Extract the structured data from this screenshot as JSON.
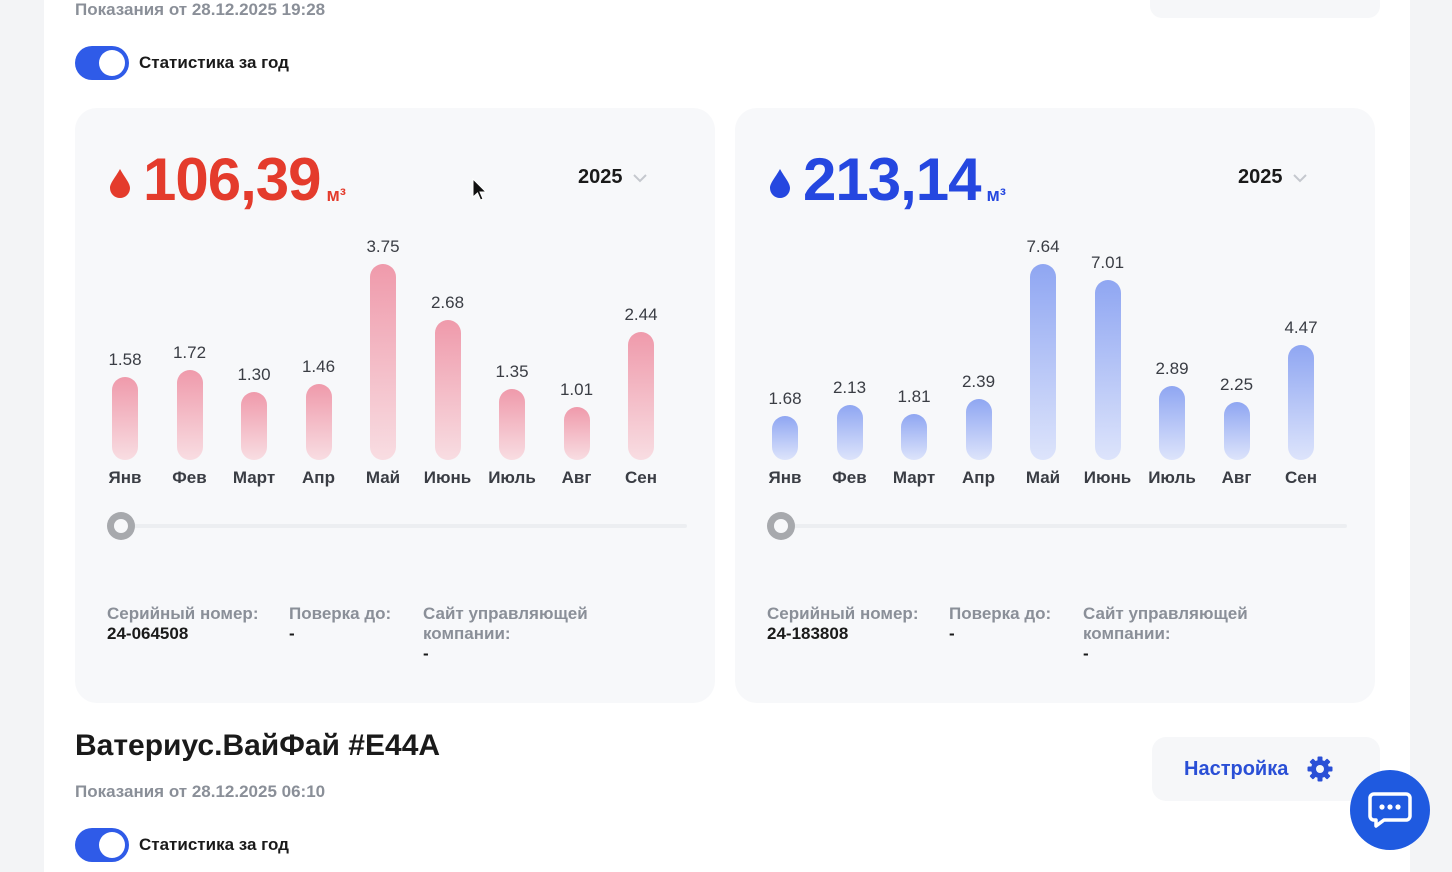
{
  "top_reading": {
    "date_text": "Показания от 28.12.2025 19:28"
  },
  "toggle_label": "Статистика за год",
  "hot_card": {
    "total": "106,39",
    "unit": "м³",
    "accent": "#e43b2c",
    "bar_color_top": "#ef9aab",
    "bar_color_bottom": "#f8dde2",
    "year": "2025",
    "months": [
      "Янв",
      "Фев",
      "Март",
      "Апр",
      "Май",
      "Июнь",
      "Июль",
      "Авг",
      "Сен"
    ],
    "values": [
      "1.58",
      "1.72",
      "1.30",
      "1.46",
      "3.75",
      "2.68",
      "1.35",
      "1.01",
      "2.44"
    ],
    "serial_label": "Серийный номер:",
    "serial_value": "24-064508",
    "check_label": "Поверка до:",
    "check_value": "-",
    "site_label": "Сайт управляющей компании:",
    "site_value": "-"
  },
  "cold_card": {
    "total": "213,14",
    "unit": "м³",
    "accent": "#2547e0",
    "bar_color_top": "#8fa6f2",
    "bar_color_bottom": "#dde4fb",
    "year": "2025",
    "months": [
      "Янв",
      "Фев",
      "Март",
      "Апр",
      "Май",
      "Июнь",
      "Июль",
      "Авг",
      "Сен"
    ],
    "values": [
      "1.68",
      "2.13",
      "1.81",
      "2.39",
      "7.64",
      "7.01",
      "2.89",
      "2.25",
      "4.47"
    ],
    "serial_label": "Серийный номер:",
    "serial_value": "24-183808",
    "check_label": "Поверка до:",
    "check_value": "-",
    "site_label": "Сайт управляющей компании:",
    "site_value": "-"
  },
  "device2": {
    "title": "Ватериус.ВайФай #E44A",
    "date_text": "Показания от 28.12.2025 06:10",
    "settings_label": "Настройка"
  },
  "icons": {
    "chat": "chat-icon",
    "settings": "gear-icon",
    "drop": "drop-icon"
  }
}
